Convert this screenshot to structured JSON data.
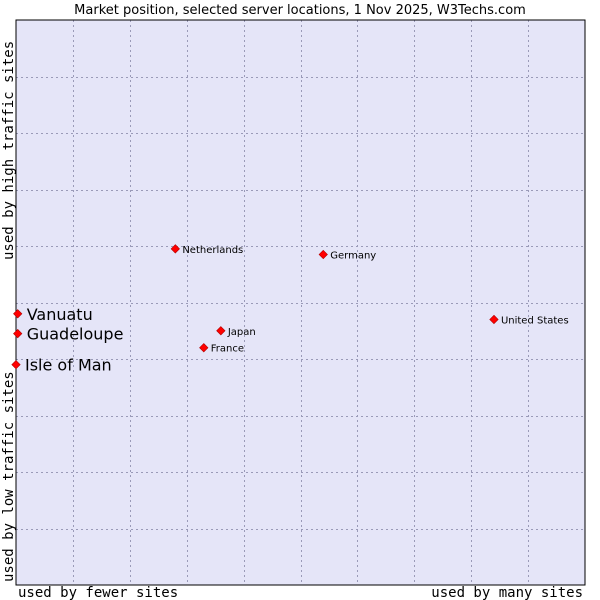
{
  "chart_data": {
    "type": "scatter",
    "title": "Market position, selected server locations, 1 Nov 2025, W3Techs.com",
    "xlabel_left": "used by fewer sites",
    "xlabel_right": "used by many sites",
    "ylabel_low": "used by low traffic sites",
    "ylabel_high": "used by high traffic sites",
    "xlim": [
      0,
      100
    ],
    "ylim": [
      0,
      100
    ],
    "grid": true,
    "marker_color": "#ff0000",
    "plot_bg": "#e5e5f8",
    "points": [
      {
        "name": "Netherlands",
        "x": 28.0,
        "y": 59.5,
        "size": "small"
      },
      {
        "name": "Germany",
        "x": 54.0,
        "y": 58.5,
        "size": "small"
      },
      {
        "name": "United States",
        "x": 84.0,
        "y": 47.0,
        "size": "small"
      },
      {
        "name": "Japan",
        "x": 36.0,
        "y": 45.0,
        "size": "small"
      },
      {
        "name": "France",
        "x": 33.0,
        "y": 42.0,
        "size": "small"
      },
      {
        "name": "Vanuatu",
        "x": 0.3,
        "y": 48.0,
        "size": "large"
      },
      {
        "name": "Guadeloupe",
        "x": 0.3,
        "y": 44.5,
        "size": "large"
      },
      {
        "name": "Isle of Man",
        "x": 0.0,
        "y": 39.0,
        "size": "large"
      }
    ]
  }
}
